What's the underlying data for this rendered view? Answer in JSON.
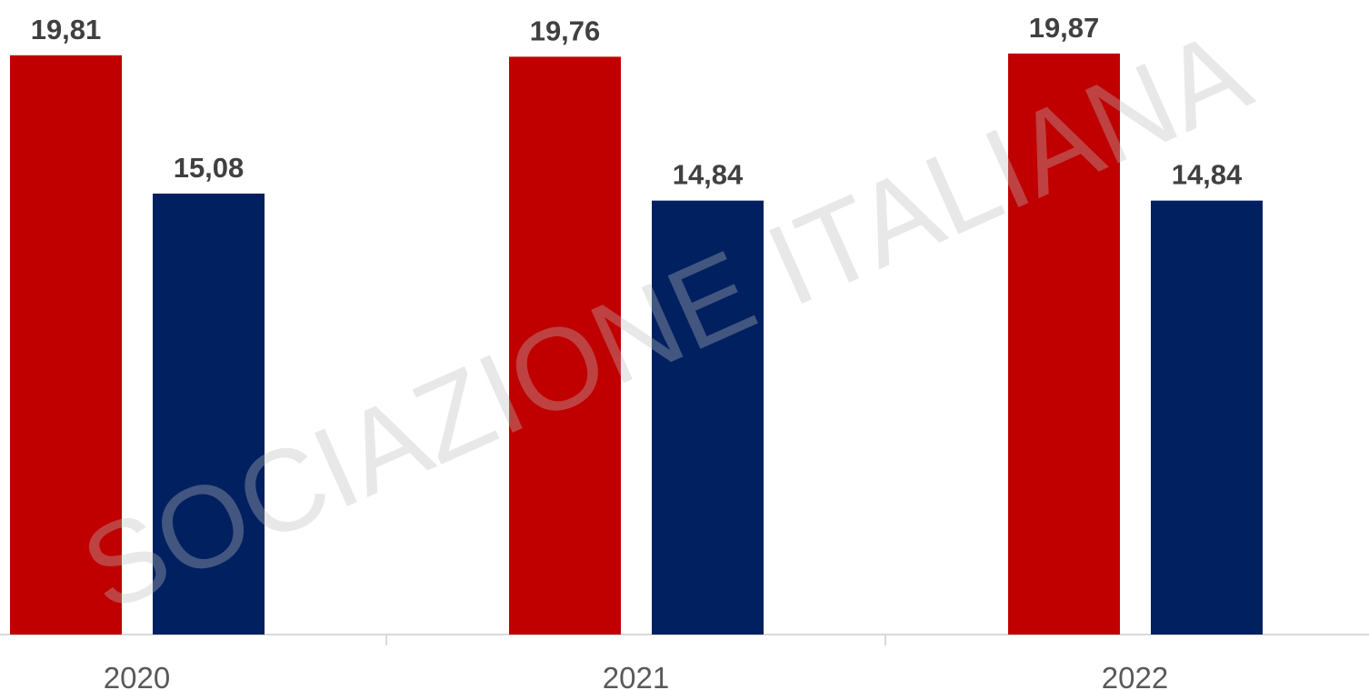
{
  "chart_data": {
    "type": "bar",
    "categories": [
      "2020",
      "2021",
      "2022"
    ],
    "series": [
      {
        "color": "#c00000",
        "values": [
          19.81,
          19.76,
          19.87
        ],
        "value_labels": [
          "19,81",
          "19,76",
          "19,87"
        ]
      },
      {
        "color": "#002060",
        "values": [
          15.08,
          14.84,
          14.84
        ],
        "value_labels": [
          "15,08",
          "14,84",
          "14,84"
        ]
      }
    ],
    "ylim": [
      0,
      21.7
    ],
    "watermark": "SOCIAZIONE ITALIANA"
  }
}
